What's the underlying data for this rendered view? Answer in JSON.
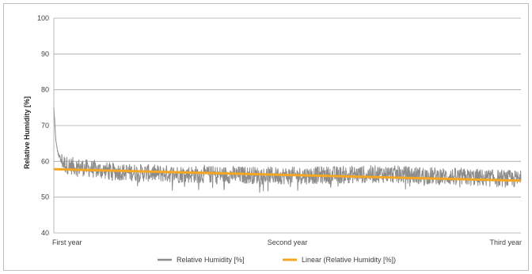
{
  "chart_data": {
    "type": "line",
    "title": "",
    "xlabel": "",
    "ylabel": "Relative Humidity [%]",
    "ylim": [
      40,
      100
    ],
    "yticks": [
      40,
      50,
      60,
      70,
      80,
      90,
      100
    ],
    "xticks": [
      {
        "label": "First year",
        "x": 0
      },
      {
        "label": "Second year",
        "x": 1
      },
      {
        "label": "Third year",
        "x": 2
      }
    ],
    "xlim": [
      0,
      2
    ],
    "grid": true,
    "legend_position": "bottom",
    "series": [
      {
        "name": "Relative Humidity [%]",
        "color": "#8c8c8c",
        "kind": "noisy-line",
        "points": [
          [
            0.0,
            75
          ],
          [
            0.003,
            72
          ],
          [
            0.006,
            68
          ],
          [
            0.01,
            65
          ],
          [
            0.015,
            63
          ],
          [
            0.02,
            62
          ],
          [
            0.03,
            60.5
          ],
          [
            0.05,
            59
          ],
          [
            0.1,
            58.5
          ],
          [
            0.2,
            57.5
          ],
          [
            0.3,
            57
          ],
          [
            0.5,
            56.5
          ],
          [
            0.7,
            56.3
          ],
          [
            1.0,
            56
          ],
          [
            1.2,
            56.2
          ],
          [
            1.4,
            56.5
          ],
          [
            1.6,
            56
          ],
          [
            1.8,
            55.5
          ],
          [
            2.0,
            55
          ]
        ],
        "noise_amplitude": 2.5
      },
      {
        "name": "Linear (Relative Humidity [%])",
        "color": "#f5a623",
        "kind": "trend",
        "points": [
          [
            0,
            57.8
          ],
          [
            2,
            54.6
          ]
        ]
      }
    ]
  }
}
